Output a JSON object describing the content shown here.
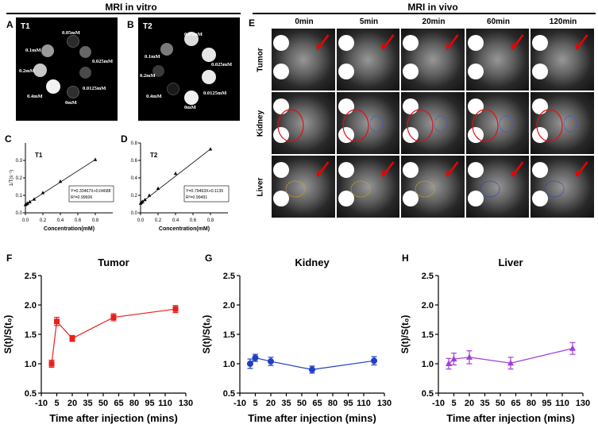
{
  "headers": {
    "vitro": "MRI in vitro",
    "vivo": "MRI in vivo"
  },
  "panel_letters": {
    "A": "A",
    "B": "B",
    "C": "C",
    "D": "D",
    "E": "E",
    "F": "F",
    "G": "G",
    "H": "H"
  },
  "vitro": {
    "t1_label": "T1",
    "t2_label": "T2",
    "concentrations": {
      "c005": "0.05mM",
      "c01": "0.1mM",
      "c0025": "0.025mM",
      "c02": "0.2mM",
      "c00125": "0.0125mM",
      "c04": "0.4mM",
      "c0": "0mM"
    }
  },
  "vivo": {
    "columns": [
      "0min",
      "5min",
      "20min",
      "60min",
      "120min"
    ],
    "rows": [
      "Tumor",
      "Kidney",
      "Liver"
    ]
  },
  "colors": {
    "tumor": "#e8201c",
    "kidney": "#1f3fc6",
    "liver": "#a23fd6"
  },
  "chart_data": [
    {
      "type": "scatter",
      "panel": "C",
      "title": "T1",
      "xlabel": "Concentration(mM)",
      "ylabel": "1/T(s⁻¹)",
      "x": [
        0,
        0.0125,
        0.025,
        0.05,
        0.1,
        0.2,
        0.4,
        0.8
      ],
      "y": [
        0.047,
        0.05,
        0.055,
        0.063,
        0.078,
        0.115,
        0.18,
        0.305
      ],
      "xlim": [
        0,
        1.0
      ],
      "ylim": [
        0,
        0.4
      ],
      "xticks": [
        "0.0",
        "0.2",
        "0.4",
        "0.6",
        "0.8"
      ],
      "yticks": [
        "0.0",
        "0.1",
        "0.2",
        "0.3"
      ],
      "equation": "Y=0.33467X+0.04688",
      "r2": "R²=0.99606"
    },
    {
      "type": "scatter",
      "panel": "D",
      "title": "T2",
      "xlabel": "Concentration(mM)",
      "ylabel": "",
      "x": [
        0,
        0.0125,
        0.025,
        0.05,
        0.1,
        0.2,
        0.4,
        0.8
      ],
      "y": [
        0.11,
        0.12,
        0.13,
        0.15,
        0.2,
        0.28,
        0.45,
        0.73
      ],
      "xlim": [
        0,
        1.0
      ],
      "ylim": [
        0,
        0.8
      ],
      "xticks": [
        "0.0",
        "0.2",
        "0.4",
        "0.6",
        "0.8"
      ],
      "yticks": [
        "0.0",
        "0.2",
        "0.4",
        "0.6",
        "0.8"
      ],
      "equation": "Y=0.79463X+0.1135",
      "r2": "R²=0.99491"
    },
    {
      "type": "line",
      "panel": "F",
      "title": "Tumor",
      "xlabel": "Time after injection (mins)",
      "ylabel": "S(t)/S(t₀)",
      "x": [
        0,
        5,
        20,
        60,
        120
      ],
      "y": [
        1.0,
        1.72,
        1.43,
        1.79,
        1.93
      ],
      "err": [
        0.06,
        0.07,
        0.05,
        0.06,
        0.06
      ],
      "xlim": [
        -10,
        130
      ],
      "ylim": [
        0.5,
        2.5
      ],
      "xticks": [
        "-10",
        "5",
        "20",
        "35",
        "50",
        "65",
        "80",
        "95",
        "110",
        "130"
      ],
      "yticks": [
        "0.5",
        "1.0",
        "1.5",
        "2.0",
        "2.5"
      ],
      "marker": "square",
      "color": "#e8201c"
    },
    {
      "type": "line",
      "panel": "G",
      "title": "Kidney",
      "xlabel": "Time after injection (mins)",
      "ylabel": "S(t)/S(t₀)",
      "x": [
        0,
        5,
        20,
        60,
        120
      ],
      "y": [
        1.0,
        1.1,
        1.04,
        0.9,
        1.05
      ],
      "err": [
        0.08,
        0.06,
        0.07,
        0.06,
        0.07
      ],
      "xlim": [
        -10,
        130
      ],
      "ylim": [
        0.5,
        2.5
      ],
      "xticks": [
        "-10",
        "5",
        "20",
        "35",
        "50",
        "65",
        "80",
        "95",
        "110",
        "130"
      ],
      "yticks": [
        "0.5",
        "1.0",
        "1.5",
        "2.0",
        "2.5"
      ],
      "marker": "circle",
      "color": "#1f3fc6"
    },
    {
      "type": "line",
      "panel": "H",
      "title": "Liver",
      "xlabel": "Time after injection (mins)",
      "ylabel": "S(t)/S(t₀)",
      "x": [
        0,
        5,
        20,
        60,
        120
      ],
      "y": [
        1.0,
        1.08,
        1.11,
        1.01,
        1.26
      ],
      "err": [
        0.09,
        0.1,
        0.11,
        0.1,
        0.1
      ],
      "xlim": [
        -10,
        130
      ],
      "ylim": [
        0.5,
        2.5
      ],
      "xticks": [
        "-10",
        "5",
        "20",
        "35",
        "50",
        "65",
        "80",
        "95",
        "110",
        "130"
      ],
      "yticks": [
        "0.5",
        "1.0",
        "1.5",
        "2.0",
        "2.5"
      ],
      "marker": "triangle",
      "color": "#a23fd6"
    }
  ]
}
